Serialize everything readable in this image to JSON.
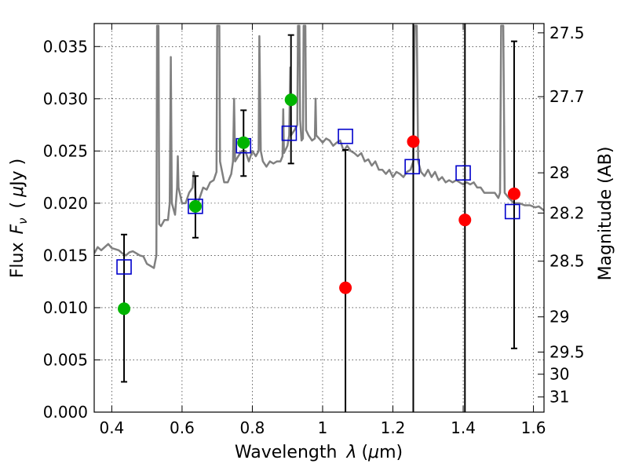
{
  "chart_data": {
    "type": "scatter",
    "xlabel": "Wavelength",
    "xlabel_symbol": "λ",
    "xlabel_unit_open": "(",
    "xlabel_unit_mu": "μ",
    "xlabel_unit_rest": "m)",
    "ylabel": "Flux",
    "ylabel_symbol": "F",
    "ylabel_subscript": "ν",
    "ylabel_unit_open": "(",
    "ylabel_unit_mu": "μ",
    "ylabel_unit_rest": "Jy )",
    "y2label": "Magnitude (AB)",
    "xlim": [
      0.35,
      1.63
    ],
    "ylim": [
      0.0,
      0.0372
    ],
    "grid": true,
    "x_ticks": [
      0.4,
      0.6,
      0.8,
      1.0,
      1.2,
      1.4,
      1.6
    ],
    "x_tick_labels": [
      "0.4",
      "0.6",
      "0.8",
      "1",
      "1.2",
      "1.4",
      "1.6"
    ],
    "y_ticks": [
      0.0,
      0.005,
      0.01,
      0.015,
      0.02,
      0.025,
      0.03,
      0.035
    ],
    "y_tick_labels": [
      "0.000",
      "0.005",
      "0.010",
      "0.015",
      "0.020",
      "0.025",
      "0.030",
      "0.035"
    ],
    "y2_ticks": [
      {
        "label": "27.5",
        "flux": 0.03631
      },
      {
        "label": "27.7",
        "flux": 0.0302
      },
      {
        "label": "28",
        "flux": 0.02291
      },
      {
        "label": "28.2",
        "flux": 0.01906
      },
      {
        "label": "28.5",
        "flux": 0.01445
      },
      {
        "label": "29",
        "flux": 0.00912
      },
      {
        "label": "29.5",
        "flux": 0.00575
      },
      {
        "label": "30",
        "flux": 0.00363
      },
      {
        "label": "31",
        "flux": 0.00145
      }
    ],
    "model_spectrum": {
      "color": "#808080",
      "points": [
        [
          0.35,
          0.0152
        ],
        [
          0.36,
          0.0158
        ],
        [
          0.37,
          0.0155
        ],
        [
          0.38,
          0.0158
        ],
        [
          0.39,
          0.0161
        ],
        [
          0.4,
          0.0157
        ],
        [
          0.41,
          0.0156
        ],
        [
          0.42,
          0.0155
        ],
        [
          0.43,
          0.0152
        ],
        [
          0.44,
          0.015
        ],
        [
          0.45,
          0.0153
        ],
        [
          0.46,
          0.0154
        ],
        [
          0.47,
          0.0152
        ],
        [
          0.48,
          0.015
        ],
        [
          0.49,
          0.0149
        ],
        [
          0.5,
          0.0142
        ],
        [
          0.51,
          0.014
        ],
        [
          0.52,
          0.0138
        ],
        [
          0.527,
          0.015
        ],
        [
          0.529,
          0.037
        ],
        [
          0.533,
          0.037
        ],
        [
          0.535,
          0.018
        ],
        [
          0.54,
          0.0178
        ],
        [
          0.55,
          0.0184
        ],
        [
          0.56,
          0.0184
        ],
        [
          0.565,
          0.02
        ],
        [
          0.568,
          0.034
        ],
        [
          0.571,
          0.02
        ],
        [
          0.58,
          0.0189
        ],
        [
          0.586,
          0.0215
        ],
        [
          0.588,
          0.0245
        ],
        [
          0.59,
          0.0215
        ],
        [
          0.6,
          0.02
        ],
        [
          0.61,
          0.02
        ],
        [
          0.62,
          0.021
        ],
        [
          0.63,
          0.0215
        ],
        [
          0.633,
          0.023
        ],
        [
          0.636,
          0.0225
        ],
        [
          0.64,
          0.0195
        ],
        [
          0.65,
          0.0205
        ],
        [
          0.66,
          0.0215
        ],
        [
          0.67,
          0.0213
        ],
        [
          0.68,
          0.022
        ],
        [
          0.69,
          0.0222
        ],
        [
          0.698,
          0.023
        ],
        [
          0.7,
          0.037
        ],
        [
          0.706,
          0.037
        ],
        [
          0.708,
          0.024
        ],
        [
          0.72,
          0.022
        ],
        [
          0.73,
          0.022
        ],
        [
          0.74,
          0.0228
        ],
        [
          0.745,
          0.024
        ],
        [
          0.748,
          0.03
        ],
        [
          0.751,
          0.024
        ],
        [
          0.76,
          0.0245
        ],
        [
          0.77,
          0.025
        ],
        [
          0.78,
          0.025
        ],
        [
          0.79,
          0.024
        ],
        [
          0.8,
          0.025
        ],
        [
          0.81,
          0.0245
        ],
        [
          0.818,
          0.025
        ],
        [
          0.82,
          0.036
        ],
        [
          0.824,
          0.025
        ],
        [
          0.83,
          0.024
        ],
        [
          0.84,
          0.0235
        ],
        [
          0.85,
          0.024
        ],
        [
          0.86,
          0.0238
        ],
        [
          0.87,
          0.024
        ],
        [
          0.88,
          0.024
        ],
        [
          0.886,
          0.0245
        ],
        [
          0.888,
          0.029
        ],
        [
          0.89,
          0.0248
        ],
        [
          0.9,
          0.0255
        ],
        [
          0.905,
          0.0265
        ],
        [
          0.908,
          0.033
        ],
        [
          0.91,
          0.0265
        ],
        [
          0.92,
          0.027
        ],
        [
          0.928,
          0.0275
        ],
        [
          0.93,
          0.037
        ],
        [
          0.934,
          0.037
        ],
        [
          0.936,
          0.028
        ],
        [
          0.94,
          0.026
        ],
        [
          0.944,
          0.0262
        ],
        [
          0.946,
          0.037
        ],
        [
          0.951,
          0.037
        ],
        [
          0.953,
          0.027
        ],
        [
          0.96,
          0.0265
        ],
        [
          0.97,
          0.026
        ],
        [
          0.978,
          0.0262
        ],
        [
          0.98,
          0.03
        ],
        [
          0.982,
          0.0265
        ],
        [
          0.99,
          0.0262
        ],
        [
          1.0,
          0.0258
        ],
        [
          1.01,
          0.0262
        ],
        [
          1.02,
          0.026
        ],
        [
          1.03,
          0.0255
        ],
        [
          1.04,
          0.0258
        ],
        [
          1.05,
          0.026
        ],
        [
          1.06,
          0.025
        ],
        [
          1.07,
          0.0255
        ],
        [
          1.08,
          0.025
        ],
        [
          1.09,
          0.0248
        ],
        [
          1.1,
          0.0245
        ],
        [
          1.11,
          0.0248
        ],
        [
          1.12,
          0.024
        ],
        [
          1.13,
          0.0242
        ],
        [
          1.14,
          0.0236
        ],
        [
          1.15,
          0.024
        ],
        [
          1.16,
          0.0232
        ],
        [
          1.17,
          0.0232
        ],
        [
          1.18,
          0.0228
        ],
        [
          1.19,
          0.0232
        ],
        [
          1.2,
          0.0225
        ],
        [
          1.21,
          0.023
        ],
        [
          1.22,
          0.0228
        ],
        [
          1.23,
          0.0225
        ],
        [
          1.24,
          0.023
        ],
        [
          1.25,
          0.0232
        ],
        [
          1.258,
          0.024
        ],
        [
          1.262,
          0.037
        ],
        [
          1.268,
          0.037
        ],
        [
          1.272,
          0.024
        ],
        [
          1.28,
          0.023
        ],
        [
          1.29,
          0.0226
        ],
        [
          1.3,
          0.0232
        ],
        [
          1.31,
          0.0225
        ],
        [
          1.32,
          0.023
        ],
        [
          1.33,
          0.0222
        ],
        [
          1.34,
          0.0225
        ],
        [
          1.35,
          0.022
        ],
        [
          1.36,
          0.0222
        ],
        [
          1.37,
          0.022
        ],
        [
          1.38,
          0.0222
        ],
        [
          1.39,
          0.022
        ],
        [
          1.4,
          0.0218
        ],
        [
          1.41,
          0.022
        ],
        [
          1.42,
          0.0218
        ],
        [
          1.43,
          0.022
        ],
        [
          1.44,
          0.0215
        ],
        [
          1.45,
          0.0215
        ],
        [
          1.46,
          0.021
        ],
        [
          1.47,
          0.021
        ],
        [
          1.48,
          0.021
        ],
        [
          1.49,
          0.021
        ],
        [
          1.5,
          0.0205
        ],
        [
          1.505,
          0.021
        ],
        [
          1.508,
          0.037
        ],
        [
          1.514,
          0.037
        ],
        [
          1.518,
          0.021
        ],
        [
          1.53,
          0.0205
        ],
        [
          1.545,
          0.02
        ],
        [
          1.56,
          0.02
        ],
        [
          1.575,
          0.0198
        ],
        [
          1.59,
          0.0198
        ],
        [
          1.605,
          0.0196
        ],
        [
          1.615,
          0.0197
        ],
        [
          1.63,
          0.0193
        ]
      ]
    },
    "detections": {
      "color": "#00b400",
      "points": [
        {
          "x": 0.435,
          "y": 0.0099
        },
        {
          "x": 0.638,
          "y": 0.0197
        },
        {
          "x": 0.775,
          "y": 0.0258
        },
        {
          "x": 0.91,
          "y": 0.0299
        }
      ]
    },
    "upper_limits": {
      "color": "#ff0000",
      "points": [
        {
          "x": 1.065,
          "y": 0.0119
        },
        {
          "x": 1.258,
          "y": 0.0259
        },
        {
          "x": 1.405,
          "y": 0.0184
        },
        {
          "x": 1.545,
          "y": 0.0209
        }
      ]
    },
    "model_photometry": {
      "color": "#0000cc",
      "points": [
        {
          "x": 0.435,
          "y": 0.0139
        },
        {
          "x": 0.638,
          "y": 0.0197
        },
        {
          "x": 0.775,
          "y": 0.0255
        },
        {
          "x": 0.905,
          "y": 0.0267
        },
        {
          "x": 1.065,
          "y": 0.0264
        },
        {
          "x": 1.255,
          "y": 0.0235
        },
        {
          "x": 1.4,
          "y": 0.0229
        },
        {
          "x": 1.54,
          "y": 0.0192
        }
      ]
    },
    "error_bars": [
      {
        "x": 0.435,
        "low": 0.0029,
        "high": 0.017,
        "cap": true
      },
      {
        "x": 0.638,
        "low": 0.0167,
        "high": 0.0226,
        "cap": true
      },
      {
        "x": 0.775,
        "low": 0.0226,
        "high": 0.0289,
        "cap": true
      },
      {
        "x": 0.91,
        "low": 0.0238,
        "high": 0.0361,
        "cap": true
      },
      {
        "x": 1.065,
        "low": 0.0,
        "high": 0.0251,
        "cap": true
      },
      {
        "x": 1.258,
        "low": 0.0,
        "high": 0.0372,
        "cap": false
      },
      {
        "x": 1.405,
        "low": 0.0,
        "high": 0.0372,
        "cap": false
      },
      {
        "x": 1.545,
        "low": 0.0061,
        "high": 0.0355,
        "cap": true
      }
    ]
  }
}
